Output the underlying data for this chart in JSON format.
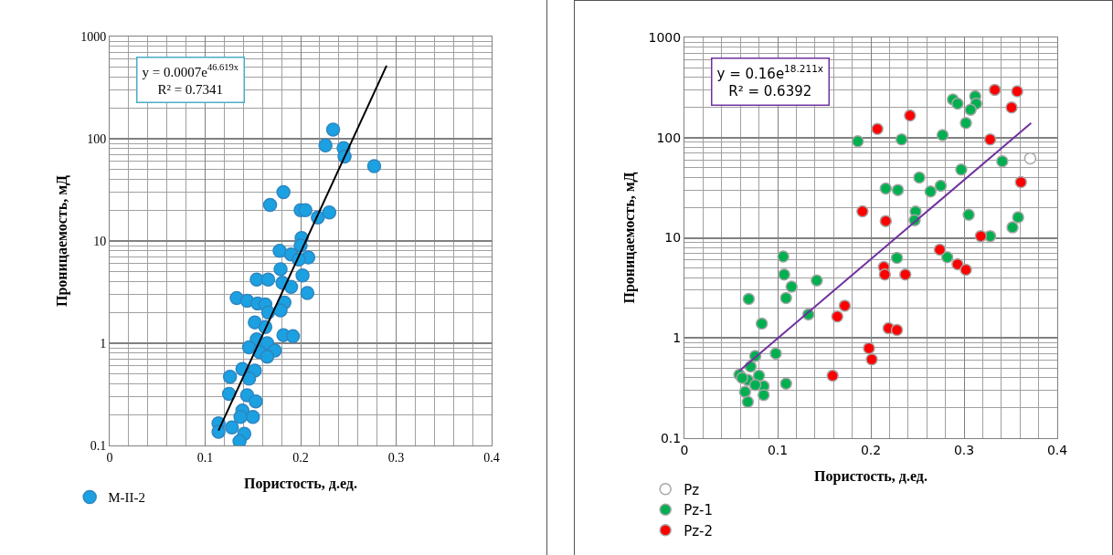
{
  "chart_data": [
    {
      "type": "scatter",
      "xlabel": "Пористость, д.ед.",
      "ylabel": "Проницаемость, мД",
      "log": "y",
      "grid": true,
      "legend": "bottom left",
      "marker": "circle",
      "xlim": [
        0,
        0.4
      ],
      "xticks": [
        0,
        0.1,
        0.2,
        0.3,
        0.4
      ],
      "ylim": [
        0.1,
        1000
      ],
      "yticks": [
        0.1,
        1,
        10,
        100,
        1000
      ],
      "annotations": [
        "y = 0.0007e$^{46.619x}$",
        "R² = 0.7341"
      ],
      "series": [
        {
          "name": "M-II-2",
          "color": "#1ba1e2",
          "x": [
            0.234,
            0.226,
            0.245,
            0.246,
            0.277,
            0.182,
            0.168,
            0.2,
            0.205,
            0.218,
            0.23,
            0.201,
            0.2,
            0.178,
            0.19,
            0.208,
            0.198,
            0.179,
            0.202,
            0.154,
            0.166,
            0.181,
            0.19,
            0.207,
            0.133,
            0.144,
            0.155,
            0.163,
            0.183,
            0.179,
            0.166,
            0.152,
            0.163,
            0.182,
            0.192,
            0.154,
            0.165,
            0.146,
            0.173,
            0.157,
            0.165,
            0.139,
            0.152,
            0.126,
            0.146,
            0.125,
            0.144,
            0.153,
            0.139,
            0.137,
            0.15,
            0.114,
            0.114,
            0.128,
            0.141,
            0.136
          ],
          "values": [
            123,
            86,
            81,
            67,
            54,
            30,
            22.5,
            20,
            20,
            17,
            19,
            10.7,
            9,
            8,
            7.4,
            6.9,
            6.6,
            5.3,
            4.6,
            4.2,
            4.2,
            3.9,
            3.55,
            3.1,
            2.76,
            2.6,
            2.45,
            2.4,
            2.5,
            2.1,
            2,
            1.6,
            1.44,
            1.2,
            1.17,
            1.09,
            1,
            0.91,
            0.85,
            0.82,
            0.74,
            0.56,
            0.54,
            0.47,
            0.45,
            0.32,
            0.31,
            0.27,
            0.22,
            0.19,
            0.19,
            0.165,
            0.136,
            0.15,
            0.13,
            0.11
          ]
        },
        {
          "type": "line",
          "marker": "none",
          "color": "#000000",
          "x": [
            0.114,
            0.29
          ],
          "values": [
            0.14,
            520
          ]
        }
      ]
    },
    {
      "type": "scatter",
      "xlabel": "Пористость, д.ед.",
      "ylabel": "Проницаемость, мД",
      "log": "y",
      "grid": true,
      "legend": "bottom left",
      "marker": "circle",
      "xlim": [
        0,
        0.4
      ],
      "xticks": [
        0,
        0.1,
        0.2,
        0.3,
        0.4
      ],
      "ylim": [
        0.1,
        1000
      ],
      "yticks": [
        0.1,
        1,
        10,
        100,
        1000
      ],
      "annotations": [
        "y = 0.16e$^{18.211x}$",
        "R² = 0.6392"
      ],
      "series": [
        {
          "name": "Pz",
          "color": "#ffffff",
          "x": [
            0.371
          ],
          "values": [
            62
          ]
        },
        {
          "name": "Pz-1",
          "color": "#00b050",
          "x": [
            0.288,
            0.293,
            0.312,
            0.313,
            0.307,
            0.302,
            0.186,
            0.233,
            0.277,
            0.341,
            0.297,
            0.252,
            0.216,
            0.229,
            0.264,
            0.275,
            0.248,
            0.247,
            0.305,
            0.358,
            0.352,
            0.328,
            0.282,
            0.228,
            0.106,
            0.107,
            0.115,
            0.109,
            0.142,
            0.069,
            0.133,
            0.083,
            0.098,
            0.076,
            0.059,
            0.071,
            0.08,
            0.068,
            0.085,
            0.076,
            0.109,
            0.065,
            0.085,
            0.068,
            0.062
          ],
          "values": [
            240,
            218,
            258,
            218,
            190,
            140,
            92,
            96,
            106,
            58,
            48,
            40,
            31,
            30,
            29,
            33,
            18.3,
            15,
            17,
            16,
            12.7,
            10.4,
            6.4,
            6.3,
            6.5,
            4.3,
            3.25,
            2.5,
            3.75,
            2.45,
            1.72,
            1.39,
            0.7,
            0.66,
            0.43,
            0.52,
            0.42,
            0.38,
            0.33,
            0.34,
            0.35,
            0.29,
            0.27,
            0.23,
            0.4
          ]
        },
        {
          "name": "Pz-2",
          "color": "#ff0000",
          "x": [
            0.333,
            0.357,
            0.351,
            0.242,
            0.207,
            0.328,
            0.361,
            0.191,
            0.216,
            0.318,
            0.274,
            0.293,
            0.302,
            0.214,
            0.215,
            0.237,
            0.172,
            0.164,
            0.219,
            0.228,
            0.198,
            0.201,
            0.159
          ],
          "values": [
            300,
            290,
            200,
            166,
            122,
            96,
            36,
            18.4,
            14.7,
            10.4,
            7.6,
            5.45,
            4.8,
            5.1,
            4.3,
            4.3,
            2.1,
            1.64,
            1.25,
            1.2,
            0.79,
            0.61,
            0.42
          ]
        },
        {
          "type": "line",
          "marker": "none",
          "color": "#7030a0",
          "x": [
            0.059,
            0.372
          ],
          "values": [
            0.47,
            140
          ]
        }
      ]
    }
  ]
}
